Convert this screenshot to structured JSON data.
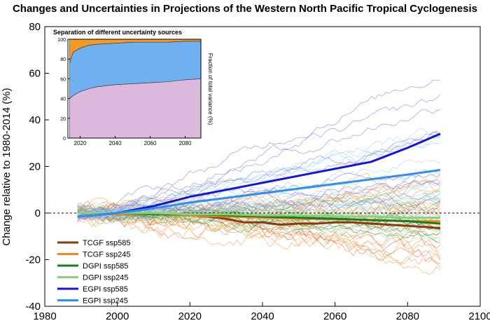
{
  "chart_data": [
    {
      "type": "line",
      "title": "Changes and Uncertainties in Projections of the Western North Pacific Tropical Cyclogenesis",
      "xlabel": "",
      "ylabel": "Change relative to 1980-2014 (%)",
      "xlim": [
        1980,
        2100
      ],
      "ylim": [
        -40,
        80
      ],
      "xticks": [
        1980,
        2000,
        2020,
        2040,
        2060,
        2080,
        2100
      ],
      "yticks": [
        -40,
        -20,
        0,
        20,
        40,
        60,
        80
      ],
      "grid": false,
      "reference_line": {
        "y": 0,
        "style": "dashed"
      },
      "legend_position": "bottom-left",
      "legend": [
        {
          "label": "TCGF  ssp585",
          "color": "#8b3a0f"
        },
        {
          "label": "TCGF  ssp245",
          "color": "#f5891f"
        },
        {
          "label": "DGPI  ssp585",
          "color": "#1e7a1e"
        },
        {
          "label": "DGPI  ssp245",
          "color": "#86d17e"
        },
        {
          "label": "EGPI  ssp585",
          "color": "#1414d8"
        },
        {
          "label": "EGPI  ssp245",
          "color": "#2f8ff0"
        }
      ],
      "series": [
        {
          "name": "TCGF  ssp585",
          "x": [
            1989,
            2000,
            2010,
            2020,
            2025,
            2030,
            2035,
            2040,
            2045,
            2050,
            2055,
            2060,
            2065,
            2070,
            2075,
            2080,
            2085,
            2089
          ],
          "y": [
            0,
            -0.5,
            -0.5,
            -1,
            -1.5,
            -2.5,
            -4,
            -4,
            -5,
            -4.5,
            -4.5,
            -4,
            -4,
            -4.5,
            -5,
            -5.5,
            -6,
            -6.5
          ]
        },
        {
          "name": "TCGF  ssp245",
          "x": [
            1989,
            2000,
            2010,
            2020,
            2030,
            2040,
            2050,
            2060,
            2070,
            2080,
            2089
          ],
          "y": [
            0,
            -0.5,
            -0.5,
            -1,
            -1.5,
            -2,
            -2.5,
            -2.5,
            -3,
            -3.5,
            -3.5
          ]
        },
        {
          "name": "DGPI  ssp585",
          "x": [
            1989,
            2000,
            2010,
            2020,
            2030,
            2040,
            2050,
            2060,
            2070,
            2080,
            2089
          ],
          "y": [
            0,
            0,
            -0.5,
            -0.5,
            -1,
            -1.5,
            -2,
            -2.5,
            -3,
            -3.5,
            -4.5
          ]
        },
        {
          "name": "DGPI  ssp245",
          "x": [
            1989,
            2000,
            2010,
            2020,
            2030,
            2040,
            2050,
            2060,
            2070,
            2080,
            2089
          ],
          "y": [
            0,
            0,
            0,
            -0.5,
            -0.5,
            -1,
            -1,
            -1.5,
            -1.5,
            -2,
            -2
          ]
        },
        {
          "name": "EGPI  ssp585",
          "x": [
            1989,
            2000,
            2010,
            2020,
            2030,
            2040,
            2050,
            2060,
            2070,
            2080,
            2089
          ],
          "y": [
            -1.5,
            0,
            3,
            7,
            10,
            13,
            16,
            19,
            22,
            28,
            34
          ]
        },
        {
          "name": "EGPI  ssp245",
          "x": [
            1989,
            2000,
            2010,
            2020,
            2030,
            2040,
            2050,
            2060,
            2070,
            2080,
            2089
          ],
          "y": [
            -1.5,
            0,
            2,
            4.5,
            6.5,
            8.5,
            10.5,
            12.5,
            14.5,
            16.5,
            18.5
          ]
        }
      ]
    },
    {
      "type": "area",
      "title": "Separation of different uncertainty sources",
      "xlabel": "",
      "ylabel": "Fraction of total variance (%)",
      "xlim": [
        2013,
        2089
      ],
      "ylim": [
        0,
        100
      ],
      "xticks": [
        2020,
        2040,
        2060,
        2080
      ],
      "yticks": [
        0,
        20,
        40,
        60,
        80,
        100
      ],
      "x": [
        2014,
        2016,
        2020,
        2025,
        2030,
        2040,
        2050,
        2060,
        2070,
        2080,
        2089
      ],
      "series": [
        {
          "color": "#dcb8dc",
          "values": [
            40,
            43,
            47,
            50,
            52,
            54,
            55,
            56,
            57,
            59,
            60
          ]
        },
        {
          "color": "#6fb0f0",
          "values": [
            36,
            44,
            44,
            44,
            43,
            42,
            42,
            41,
            40,
            39,
            38
          ]
        },
        {
          "color": "#f59a24",
          "values": [
            24,
            13,
            9,
            6,
            5,
            4,
            3,
            3,
            3,
            2,
            2
          ]
        }
      ]
    }
  ]
}
